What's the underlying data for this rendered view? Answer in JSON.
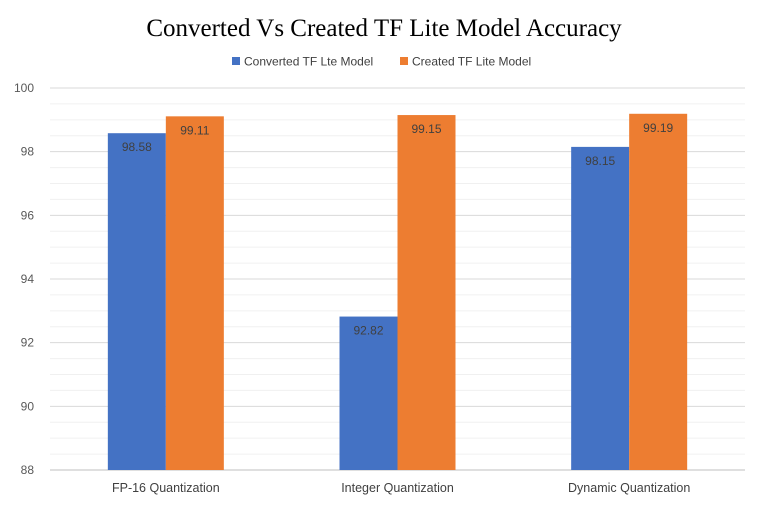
{
  "chart_data": {
    "type": "bar",
    "title": "Converted Vs Created TF Lite Model Accuracy",
    "categories": [
      "FP-16 Quantization",
      "Integer Quantization",
      "Dynamic Quantization"
    ],
    "series": [
      {
        "name": "Converted TF Lte Model",
        "color": "#4472C4",
        "values": [
          98.58,
          92.82,
          98.15
        ],
        "labels": [
          "98.58",
          "92.82",
          "98.15"
        ]
      },
      {
        "name": "Created TF Lite Model",
        "color": "#ED7D31",
        "values": [
          99.11,
          99.15,
          99.19
        ],
        "labels": [
          "99.11",
          "99.15",
          "99.19"
        ]
      }
    ],
    "ylim": [
      88,
      100
    ],
    "yticks": [
      88,
      90,
      92,
      94,
      96,
      98,
      100
    ],
    "ytick_labels": [
      "88",
      "90",
      "92",
      "94",
      "96",
      "98",
      "100"
    ],
    "xlabel": "",
    "ylabel": "",
    "legend_position": "top-center",
    "grid": true,
    "minor_grid": true
  }
}
